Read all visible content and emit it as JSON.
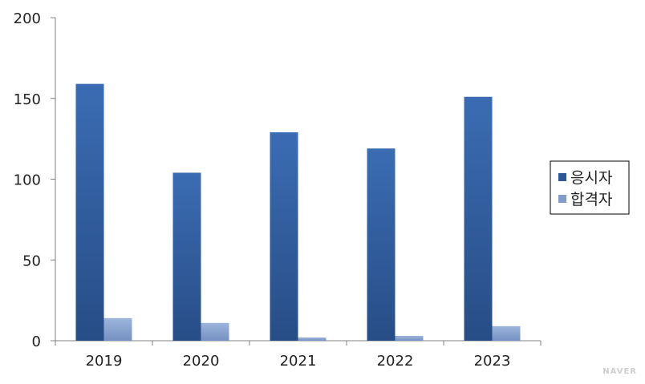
{
  "chart_data": {
    "type": "bar",
    "categories": [
      "2019",
      "2020",
      "2021",
      "2022",
      "2023"
    ],
    "series": [
      {
        "name": "응시자",
        "values": [
          159,
          104,
          129,
          119,
          151
        ]
      },
      {
        "name": "합격자",
        "values": [
          14,
          11,
          2,
          3,
          9
        ]
      }
    ],
    "ylim": [
      0,
      200
    ],
    "yticks": [
      0,
      50,
      100,
      150,
      200
    ],
    "grid": false,
    "legend_position": "right"
  },
  "colors": {
    "series_0": "#2d5896",
    "series_0_light": "#3a6fb8",
    "series_1": "#7f9ccc",
    "series_1_light": "#9db5dc",
    "axis": "#808080"
  },
  "watermark": "NAVER"
}
